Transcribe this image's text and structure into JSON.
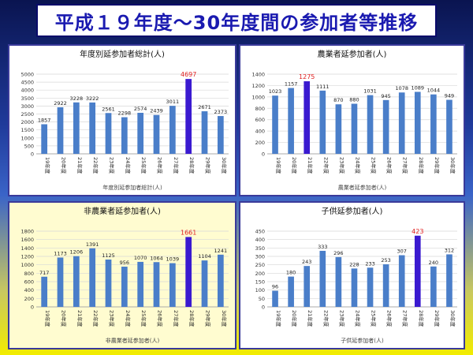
{
  "title": "平成１９年度～30年度間の参加者等推移",
  "colors": {
    "bar": "#4a7ec9",
    "highlight_bar": "#3a1ad0",
    "highlight_label": "#e02020",
    "label": "#222222",
    "grid": "#d8d8d8"
  },
  "chart_data": [
    {
      "type": "bar",
      "title": "年度別延参加者総計(人)",
      "xlabel": "年度別延参加者総計(人)",
      "categories": [
        "19年度",
        "20年度",
        "21年度",
        "22年度",
        "23年度",
        "24年度",
        "25年度",
        "26年度",
        "27年度",
        "28年度",
        "29年度",
        "30年度"
      ],
      "values": [
        1857,
        2922,
        3228,
        3222,
        2561,
        2298,
        2574,
        2439,
        3011,
        4697,
        2671,
        2373
      ],
      "highlight_index": 9,
      "ylim": [
        0,
        5000
      ],
      "yticks": [
        0,
        500,
        1000,
        1500,
        2000,
        2500,
        3000,
        3500,
        4000,
        4500,
        5000
      ],
      "grid": true
    },
    {
      "type": "bar",
      "title": "農業者延参加者(人)",
      "xlabel": "農業者延参加者(人)",
      "categories": [
        "19年度",
        "20年度",
        "21年度",
        "22年度",
        "23年度",
        "24年度",
        "25年度",
        "26年度",
        "27年度",
        "28年度",
        "29年度",
        "30年度"
      ],
      "values": [
        1023,
        1157,
        1275,
        1111,
        870,
        880,
        1031,
        945,
        1078,
        1089,
        1044,
        949
      ],
      "highlight_index": 2,
      "ylim": [
        0,
        1400
      ],
      "yticks": [
        0,
        200,
        400,
        600,
        800,
        1000,
        1200,
        1400
      ],
      "grid": true
    },
    {
      "type": "bar",
      "title": "非農業者延参加者(人)",
      "xlabel": "非農業者延参加者(人)",
      "categories": [
        "19年度",
        "20年度",
        "21年度",
        "22年度",
        "23年度",
        "24年度",
        "25年度",
        "26年度",
        "27年度",
        "28年度",
        "29年度",
        "30年度"
      ],
      "values": [
        717,
        1173,
        1206,
        1391,
        1125,
        956,
        1070,
        1064,
        1039,
        1661,
        1104,
        1241
      ],
      "highlight_index": 9,
      "ylim": [
        0,
        1800
      ],
      "yticks": [
        0,
        200,
        400,
        600,
        800,
        1000,
        1200,
        1400,
        1600,
        1800
      ],
      "grid": true
    },
    {
      "type": "bar",
      "title": "子供延参加者(人)",
      "xlabel": "子供延参加者(人)",
      "categories": [
        "19年度",
        "20年度",
        "21年度",
        "22年度",
        "23年度",
        "24年度",
        "25年度",
        "26年度",
        "27年度",
        "28年度",
        "29年度",
        "30年度"
      ],
      "values": [
        96,
        180,
        243,
        333,
        296,
        228,
        233,
        253,
        307,
        423,
        240,
        312
      ],
      "highlight_index": 9,
      "ylim": [
        0,
        450
      ],
      "yticks": [
        0,
        50,
        100,
        150,
        200,
        250,
        300,
        350,
        400,
        450
      ],
      "grid": true
    }
  ]
}
